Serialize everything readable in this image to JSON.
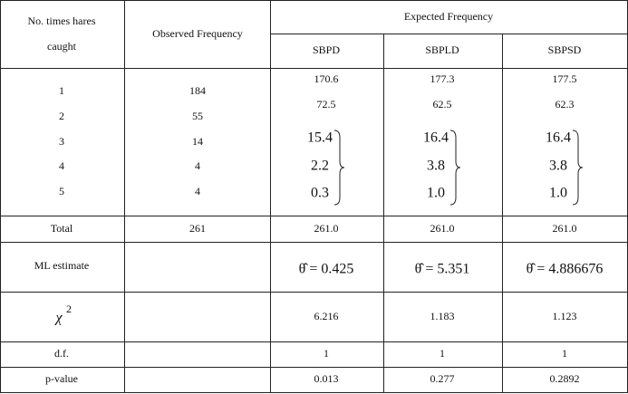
{
  "table": {
    "header": {
      "no_times": [
        "No. times hares",
        "caught"
      ],
      "observed": "Observed Frequency",
      "expected": "Expected Frequency",
      "models": [
        "SBPD",
        "SBPLD",
        "SBPSD"
      ]
    },
    "rows": [
      {
        "times": "1",
        "observed": "184",
        "expected": [
          "170.6",
          "177.3",
          "177.5"
        ]
      },
      {
        "times": "2",
        "observed": "55",
        "expected": [
          "72.5",
          "62.5",
          "62.3"
        ]
      },
      {
        "times": "3",
        "observed": "14",
        "expected": [
          "15.4",
          "16.4",
          "16.4"
        ]
      },
      {
        "times": "4",
        "observed": "4",
        "expected": [
          "2.2",
          "3.8",
          "3.8"
        ]
      },
      {
        "times": "5",
        "observed": "4",
        "expected": [
          "0.3",
          "1.0",
          "1.0"
        ]
      }
    ],
    "total": {
      "label": "Total",
      "observed": "261",
      "expected": [
        "261.0",
        "261.0",
        "261.0"
      ]
    },
    "ml": {
      "label": "ML estimate",
      "expected": [
        "θ̂ = 0.425",
        "θ̂ = 5.351",
        "θ̂ = 4.886676"
      ]
    },
    "chi": {
      "symbol": "χ",
      "superscript": "2",
      "expected": [
        "6.216",
        "1.183",
        "1.123"
      ]
    },
    "df": {
      "label": "d.f.",
      "expected": [
        "1",
        "1",
        "1"
      ]
    },
    "pvalue": {
      "label": "p-value",
      "expected": [
        "0.013",
        "0.277",
        "0.2892"
      ]
    }
  }
}
